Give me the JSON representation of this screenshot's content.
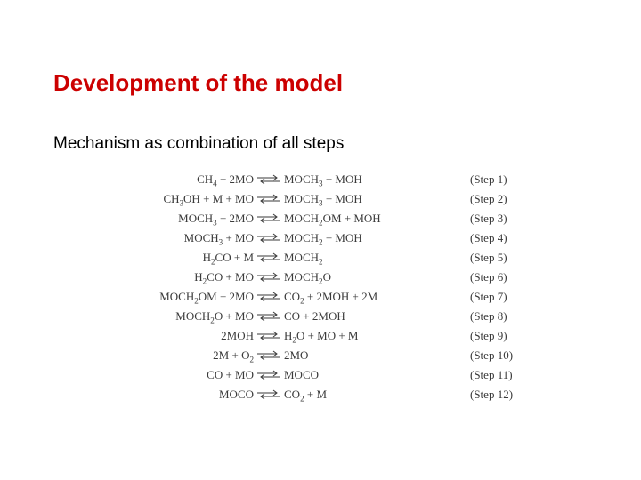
{
  "title": {
    "text": "Development of the model",
    "color": "#cc0000",
    "fontsize": 26
  },
  "subtitle": {
    "text": "Mechanism as combination of all steps",
    "fontsize": 19,
    "color": "#000000"
  },
  "mechanism": {
    "font_family": "Times New Roman",
    "fontsize": 13,
    "text_color": "#3a3a3a",
    "arrow_color": "#3a3a3a",
    "steps": [
      {
        "lhs_html": "CH<span class='sub'>4</span> + 2MO",
        "rhs_html": "MOCH<span class='sub'>3</span> + MOH",
        "label": "(Step 1)"
      },
      {
        "lhs_html": "CH<span class='sub'>3</span>OH + M + MO",
        "rhs_html": "MOCH<span class='sub'>3</span> + MOH",
        "label": "(Step 2)"
      },
      {
        "lhs_html": "MOCH<span class='sub'>3</span> + 2MO",
        "rhs_html": "MOCH<span class='sub'>2</span>OM + MOH",
        "label": "(Step 3)"
      },
      {
        "lhs_html": "MOCH<span class='sub'>3</span> + MO",
        "rhs_html": "MOCH<span class='sub'>2</span> + MOH",
        "label": "(Step 4)"
      },
      {
        "lhs_html": "H<span class='sub'>2</span>CO + M",
        "rhs_html": "MOCH<span class='sub'>2</span>",
        "label": "(Step 5)"
      },
      {
        "lhs_html": "H<span class='sub'>2</span>CO + MO",
        "rhs_html": "MOCH<span class='sub'>2</span>O",
        "label": "(Step 6)"
      },
      {
        "lhs_html": "MOCH<span class='sub'>2</span>OM + 2MO",
        "rhs_html": "CO<span class='sub'>2</span> + 2MOH + 2M",
        "label": "(Step 7)"
      },
      {
        "lhs_html": "MOCH<span class='sub'>2</span>O + MO",
        "rhs_html": "CO + 2MOH",
        "label": "(Step 8)"
      },
      {
        "lhs_html": "2MOH",
        "rhs_html": "H<span class='sub'>2</span>O + MO + M",
        "label": "(Step 9)"
      },
      {
        "lhs_html": "2M + O<span class='sub'>2</span>",
        "rhs_html": "2MO",
        "label": "(Step 10)"
      },
      {
        "lhs_html": "CO + MO",
        "rhs_html": "MOCO",
        "label": "(Step 11)"
      },
      {
        "lhs_html": "MOCO",
        "rhs_html": "CO<span class='sub'>2</span> + M",
        "label": "(Step 12)"
      }
    ]
  }
}
